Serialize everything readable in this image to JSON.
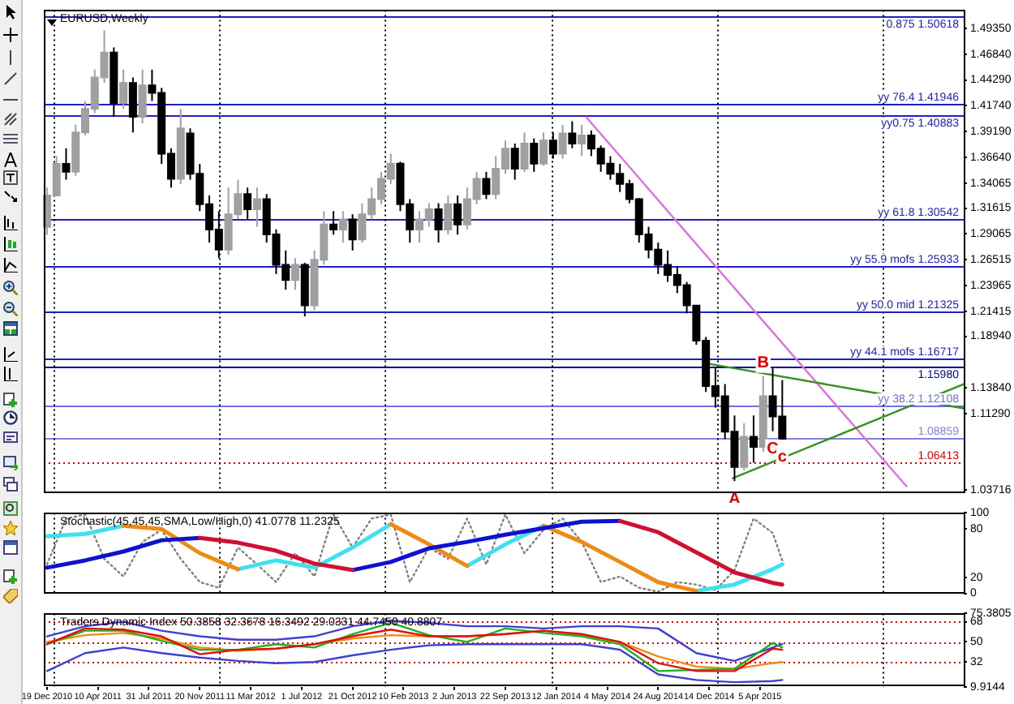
{
  "chart_data": [
    {
      "type": "candlestick",
      "title": "EURUSD,Weekly",
      "xlim": [
        "2010-12-12",
        "2016-06-26"
      ],
      "ylim": [
        1.0345,
        1.512
      ],
      "tick_labels": "y",
      "yticks": [
        {
          "value": 1.4935,
          "label": "1.49350"
        },
        {
          "value": 1.4684,
          "label": "1.46840"
        },
        {
          "value": 1.4429,
          "label": "1.44290"
        },
        {
          "value": 1.4174,
          "label": "1.41740"
        },
        {
          "value": 1.3919,
          "label": "1.39190"
        },
        {
          "value": 1.3664,
          "label": "1.36640"
        },
        {
          "value": 1.34065,
          "label": "1.34065"
        },
        {
          "value": 1.31615,
          "label": "1.31615"
        },
        {
          "value": 1.29065,
          "label": "1.29065"
        },
        {
          "value": 1.26515,
          "label": "1.26515"
        },
        {
          "value": 1.23965,
          "label": "1.23965"
        },
        {
          "value": 1.21415,
          "label": "1.21415"
        },
        {
          "value": 1.1894,
          "label": "1.18940"
        },
        {
          "value": 1.1384,
          "label": "1.13840"
        },
        {
          "value": 1.1129,
          "label": "1.11290"
        },
        {
          "value": 1.03716,
          "label": "1.03716"
        }
      ],
      "ref_lines": [
        {
          "axis": "y",
          "value": 1.50618,
          "label": "0.875 1.50618",
          "color": "#2020c0"
        },
        {
          "axis": "y",
          "value": 1.41946,
          "label": "yy 76.4 1.41946",
          "color": "#2020c0"
        },
        {
          "axis": "y",
          "value": 1.40883,
          "label": "yy0.75 1.40883",
          "color": "#2020c0"
        },
        {
          "axis": "y",
          "value": 1.30542,
          "label": "yy 61.8 1.30542",
          "color": "#2020c0"
        },
        {
          "axis": "y",
          "value": 1.25933,
          "label": "yy 55.9 mofs 1.25933",
          "color": "#2020c0"
        },
        {
          "axis": "y",
          "value": 1.21325,
          "label": "yy 50.0 mid 1.21325",
          "color": "#2020c0"
        },
        {
          "axis": "y",
          "value": 1.16717,
          "label": "yy 44.1 mofs 1.16717",
          "color": "#2020c0"
        },
        {
          "axis": "y",
          "value": 1.1598,
          "label": "1.15980",
          "color": "#000090"
        },
        {
          "axis": "y",
          "value": 1.12108,
          "label": "yy 38.2 1.12108",
          "color": "#7070e0"
        },
        {
          "axis": "y",
          "value": 1.08859,
          "label": "1.08859",
          "color": "#8080e0"
        },
        {
          "axis": "y",
          "value": 1.06413,
          "label": "1.06413",
          "color": "#e00000",
          "line_style": "dotted"
        },
        {
          "axis": "x",
          "value": "2011-01-01",
          "color": "#000000",
          "line_style": "dotted"
        },
        {
          "axis": "x",
          "value": "2012-01-01",
          "color": "#000000",
          "line_style": "dotted"
        },
        {
          "axis": "x",
          "value": "2013-01-01",
          "color": "#000000",
          "line_style": "dotted"
        },
        {
          "axis": "x",
          "value": "2014-01-01",
          "color": "#000000",
          "line_style": "dotted"
        },
        {
          "axis": "x",
          "value": "2015-01-01",
          "color": "#000000",
          "line_style": "dotted"
        },
        {
          "axis": "x",
          "value": "2016-01-01",
          "color": "#000000",
          "line_style": "dotted"
        }
      ],
      "annotations": [
        {
          "text": "A",
          "x": "2015-02-08",
          "y": 1.046
        },
        {
          "text": "B",
          "x": "2015-04-12",
          "y": 1.15
        },
        {
          "text": "C",
          "x": "2015-05-03",
          "y": 1.0954
        },
        {
          "text": "c",
          "x": "2015-05-24",
          "y": 1.0876
        }
      ],
      "series": [
        {
          "colors": [
            "#a0a0a0",
            "#a0a0a0",
            "#000000",
            "#a0a0a0",
            "#a0a0a0",
            "#a0a0a0",
            "#a0a0a0",
            "#000000",
            "#a0a0a0",
            "#000000",
            "#a0a0a0",
            "#000000",
            "#000000",
            "#000000",
            "#a0a0a0",
            "#000000",
            "#000000",
            "#000000",
            "#000000",
            "#a0a0a0",
            "#a0a0a0",
            "#000000",
            "#a0a0a0",
            "#000000",
            "#000000",
            "#000000",
            "#a0a0a0",
            "#000000",
            "#a0a0a0",
            "#a0a0a0",
            "#000000",
            "#a0a0a0",
            "#000000",
            "#a0a0a0",
            "#a0a0a0",
            "#a0a0a0",
            "#a0a0a0",
            "#000000",
            "#000000",
            "#a0a0a0",
            "#a0a0a0",
            "#000000",
            "#a0a0a0",
            "#000000",
            "#a0a0a0",
            "#a0a0a0",
            "#000000",
            "#a0a0a0",
            "#a0a0a0",
            "#000000",
            "#a0a0a0",
            "#000000",
            "#a0a0a0",
            "#000000",
            "#a0a0a0",
            "#000000",
            "#a0a0a0",
            "#000000",
            "#000000",
            "#000000",
            "#000000",
            "#000000",
            "#000000",
            "#000000",
            "#000000",
            "#000000",
            "#000000",
            "#000000",
            "#000000",
            "#000000",
            "#000000",
            "#000000",
            "#000000",
            "#a0a0a0",
            "#000000",
            "#a0a0a0",
            "#000000",
            "#000000"
          ],
          "x": [
            "2010-12-19",
            "2011-01-09",
            "2011-01-30",
            "2011-02-20",
            "2011-03-13",
            "2011-04-03",
            "2011-04-24",
            "2011-05-15",
            "2011-06-05",
            "2011-06-26",
            "2011-07-17",
            "2011-08-07",
            "2011-08-28",
            "2011-09-18",
            "2011-10-09",
            "2011-10-30",
            "2011-11-20",
            "2011-12-11",
            "2012-01-01",
            "2012-01-22",
            "2012-02-12",
            "2012-03-04",
            "2012-03-25",
            "2012-04-15",
            "2012-05-06",
            "2012-05-27",
            "2012-06-17",
            "2012-07-08",
            "2012-07-29",
            "2012-08-19",
            "2012-09-09",
            "2012-09-30",
            "2012-10-21",
            "2012-11-11",
            "2012-12-02",
            "2012-12-23",
            "2013-01-13",
            "2013-02-03",
            "2013-02-24",
            "2013-03-17",
            "2013-04-07",
            "2013-04-28",
            "2013-05-19",
            "2013-06-09",
            "2013-06-30",
            "2013-07-21",
            "2013-08-11",
            "2013-09-01",
            "2013-09-22",
            "2013-10-13",
            "2013-11-03",
            "2013-11-24",
            "2013-12-15",
            "2014-01-05",
            "2014-01-26",
            "2014-02-16",
            "2014-03-09",
            "2014-03-30",
            "2014-04-20",
            "2014-05-11",
            "2014-06-01",
            "2014-06-22",
            "2014-07-13",
            "2014-08-03",
            "2014-08-24",
            "2014-09-14",
            "2014-10-05",
            "2014-10-26",
            "2014-11-16",
            "2014-12-07",
            "2014-12-28",
            "2015-01-18",
            "2015-02-08",
            "2015-03-01",
            "2015-03-22",
            "2015-04-12",
            "2015-05-03",
            "2015-05-24"
          ],
          "ohlc": [
            [
              1.2976,
              1.3364,
              1.2898,
              1.3287
            ],
            [
              1.3287,
              1.3675,
              1.3287,
              1.3598
            ],
            [
              1.3598,
              1.3753,
              1.3442,
              1.352
            ],
            [
              1.352,
              1.3986,
              1.348,
              1.3909
            ],
            [
              1.3909,
              1.422,
              1.388,
              1.4142
            ],
            [
              1.4142,
              1.4531,
              1.41,
              1.4453
            ],
            [
              1.4453,
              1.4919,
              1.44,
              1.47
            ],
            [
              1.47,
              1.475,
              1.4064,
              1.42
            ],
            [
              1.42,
              1.4531,
              1.4142,
              1.44
            ],
            [
              1.44,
              1.4453,
              1.3909,
              1.4064
            ],
            [
              1.4064,
              1.4531,
              1.4,
              1.4375
            ],
            [
              1.4375,
              1.4531,
              1.422,
              1.43
            ],
            [
              1.43,
              1.435,
              1.3598,
              1.37
            ],
            [
              1.37,
              1.3753,
              1.3364,
              1.345
            ],
            [
              1.345,
              1.4142,
              1.34,
              1.395
            ],
            [
              1.39,
              1.395,
              1.3442,
              1.35
            ],
            [
              1.35,
              1.3598,
              1.3131,
              1.32
            ],
            [
              1.32,
              1.3287,
              1.282,
              1.295
            ],
            [
              1.295,
              1.3131,
              1.2665,
              1.275
            ],
            [
              1.275,
              1.3364,
              1.27,
              1.31
            ],
            [
              1.31,
              1.3442,
              1.3053,
              1.33
            ],
            [
              1.33,
              1.3364,
              1.3053,
              1.315
            ],
            [
              1.315,
              1.3364,
              1.2976,
              1.325
            ],
            [
              1.325,
              1.33,
              1.282,
              1.29
            ],
            [
              1.29,
              1.295,
              1.2509,
              1.26
            ],
            [
              1.26,
              1.2742,
              1.2354,
              1.245
            ],
            [
              1.245,
              1.2665,
              1.2354,
              1.26
            ],
            [
              1.26,
              1.262,
              1.209,
              1.22
            ],
            [
              1.22,
              1.2742,
              1.215,
              1.265
            ],
            [
              1.265,
              1.3131,
              1.26,
              1.3
            ],
            [
              1.3,
              1.3131,
              1.2898,
              1.295
            ],
            [
              1.295,
              1.3131,
              1.282,
              1.305
            ],
            [
              1.305,
              1.31,
              1.2742,
              1.285
            ],
            [
              1.285,
              1.3209,
              1.282,
              1.31
            ],
            [
              1.31,
              1.3364,
              1.305,
              1.325
            ],
            [
              1.325,
              1.352,
              1.32,
              1.345
            ],
            [
              1.345,
              1.37,
              1.34,
              1.36
            ],
            [
              1.36,
              1.362,
              1.3131,
              1.32
            ],
            [
              1.32,
              1.325,
              1.282,
              1.295
            ],
            [
              1.295,
              1.3131,
              1.282,
              1.305
            ],
            [
              1.305,
              1.3209,
              1.2976,
              1.315
            ],
            [
              1.315,
              1.3209,
              1.282,
              1.295
            ],
            [
              1.295,
              1.3287,
              1.29,
              1.32
            ],
            [
              1.32,
              1.3287,
              1.2898,
              1.3
            ],
            [
              1.3,
              1.3364,
              1.295,
              1.325
            ],
            [
              1.325,
              1.352,
              1.32,
              1.345
            ],
            [
              1.345,
              1.352,
              1.325,
              1.33
            ],
            [
              1.33,
              1.3675,
              1.325,
              1.355
            ],
            [
              1.355,
              1.3831,
              1.35,
              1.375
            ],
            [
              1.375,
              1.38,
              1.3442,
              1.355
            ],
            [
              1.355,
              1.3909,
              1.352,
              1.38
            ],
            [
              1.38,
              1.385,
              1.352,
              1.36
            ],
            [
              1.36,
              1.3909,
              1.358,
              1.383
            ],
            [
              1.383,
              1.3909,
              1.365,
              1.37
            ],
            [
              1.37,
              1.3986,
              1.365,
              1.39
            ],
            [
              1.39,
              1.402,
              1.3753,
              1.38
            ],
            [
              1.38,
              1.3986,
              1.3675,
              1.388
            ],
            [
              1.388,
              1.393,
              1.3675,
              1.375
            ],
            [
              1.375,
              1.378,
              1.352,
              1.36
            ],
            [
              1.36,
              1.3675,
              1.3442,
              1.35
            ],
            [
              1.35,
              1.3598,
              1.332,
              1.34
            ],
            [
              1.34,
              1.3442,
              1.3209,
              1.325
            ],
            [
              1.325,
              1.326,
              1.282,
              1.29
            ],
            [
              1.29,
              1.2976,
              1.2665,
              1.275
            ],
            [
              1.275,
              1.282,
              1.2509,
              1.26
            ],
            [
              1.26,
              1.2742,
              1.2431,
              1.25
            ],
            [
              1.25,
              1.2587,
              1.232,
              1.24
            ],
            [
              1.24,
              1.2431,
              1.212,
              1.22
            ],
            [
              1.2198,
              1.2198,
              1.1809,
              1.185
            ],
            [
              1.185,
              1.1887,
              1.1343,
              1.14
            ],
            [
              1.14,
              1.1576,
              1.1187,
              1.13
            ],
            [
              1.13,
              1.1421,
              1.0876,
              1.095
            ],
            [
              1.095,
              1.111,
              1.046,
              1.06
            ],
            [
              1.06,
              1.1032,
              1.0566,
              1.09
            ],
            [
              1.09,
              1.111,
              1.0643,
              1.08
            ],
            [
              1.08,
              1.15,
              1.075,
              1.13
            ],
            [
              1.13,
              1.1576,
              1.0954,
              1.11
            ],
            [
              1.11,
              1.146,
              1.0876,
              1.088
            ]
          ]
        },
        {
          "type": "line",
          "color": "#e070e0",
          "x": [
            "2014-03-19",
            "2016-02-21"
          ],
          "values": [
            1.406,
            1.041
          ]
        },
        {
          "type": "line",
          "color": "#3a8f20",
          "x": [
            "2014-12-14",
            "2016-06-26"
          ],
          "values": [
            1.162,
            1.118
          ]
        },
        {
          "type": "line",
          "color": "#3a8f20",
          "x": [
            "2015-02-04",
            "2016-06-26"
          ],
          "values": [
            1.049,
            1.142
          ]
        }
      ]
    },
    {
      "type": "line",
      "title": "Stochastic(45,45,45,SMA,Low/High,0) 41.0778 11.2325",
      "xlim": [
        "2010-12-12",
        "2016-06-26"
      ],
      "ylim": [
        0,
        100
      ],
      "yticks": [
        0,
        20,
        80,
        100
      ],
      "tick_labels": "y",
      "ref_lines": [
        {
          "axis": "x",
          "value": "2011-01-01",
          "color": "#000000",
          "line_style": "dotted"
        },
        {
          "axis": "x",
          "value": "2012-01-01",
          "color": "#000000",
          "line_style": "dotted"
        },
        {
          "axis": "x",
          "value": "2013-01-01",
          "color": "#000000",
          "line_style": "dotted"
        },
        {
          "axis": "x",
          "value": "2014-01-01",
          "color": "#000000",
          "line_style": "dotted"
        },
        {
          "axis": "x",
          "value": "2015-01-01",
          "color": "#000000",
          "line_style": "dotted"
        },
        {
          "axis": "x",
          "value": "2016-01-01",
          "color": "#000000",
          "line_style": "dotted"
        }
      ],
      "x": [
        "2010-12-19",
        "2011-03-13",
        "2011-06-05",
        "2011-08-28",
        "2011-11-20",
        "2012-02-12",
        "2012-05-06",
        "2012-07-29",
        "2012-10-21",
        "2013-01-13",
        "2013-04-07",
        "2013-06-30",
        "2013-09-22",
        "2013-12-15",
        "2014-03-09",
        "2014-06-01",
        "2014-08-24",
        "2014-11-16",
        "2015-02-08",
        "2015-05-03",
        "2015-05-24"
      ],
      "series": [
        {
          "color": "#808080",
          "line_style": "dotted",
          "x": [
            "2010-12-19",
            "2011-01-30",
            "2011-03-13",
            "2011-04-24",
            "2011-06-05",
            "2011-07-17",
            "2011-08-28",
            "2011-10-09",
            "2011-11-20",
            "2012-01-01",
            "2012-02-12",
            "2012-03-25",
            "2012-05-06",
            "2012-06-17",
            "2012-07-29",
            "2012-09-09",
            "2012-10-21",
            "2012-12-02",
            "2013-01-13",
            "2013-02-24",
            "2013-04-07",
            "2013-05-19",
            "2013-06-30",
            "2013-08-11",
            "2013-09-22",
            "2013-11-03",
            "2013-12-15",
            "2014-01-26",
            "2014-03-09",
            "2014-04-20",
            "2014-06-01",
            "2014-07-13",
            "2014-08-24",
            "2014-10-05",
            "2014-11-16",
            "2014-12-28",
            "2015-02-08",
            "2015-03-22",
            "2015-05-03",
            "2015-05-24"
          ],
          "values": [
            36,
            93,
            98,
            43,
            21,
            64,
            79,
            43,
            14,
            7,
            57,
            36,
            14,
            50,
            21,
            98,
            57,
            93,
            98,
            14,
            57,
            43,
            93,
            36,
            98,
            50,
            79,
            93,
            64,
            14,
            21,
            7,
            2,
            14,
            11,
            4,
            29,
            93,
            75,
            41
          ]
        },
        {
          "color": "#40e0f0",
          "values": [
            71,
            74,
            84,
            null,
            null,
            30,
            41,
            32,
            57,
            86,
            null,
            34,
            61,
            84,
            null,
            null,
            null,
            3,
            11,
            30,
            36
          ]
        },
        {
          "color": "#f08a10",
          "values": [
            null,
            null,
            84,
            80,
            50,
            30,
            null,
            null,
            null,
            86,
            61,
            34,
            null,
            84,
            64,
            39,
            14,
            3,
            null,
            null,
            null
          ]
        },
        {
          "color": "#1010d0",
          "values": [
            32,
            41,
            52,
            66,
            69,
            null,
            null,
            null,
            29,
            39,
            56,
            64,
            73,
            81,
            89,
            90,
            null,
            null,
            null,
            null,
            null
          ]
        },
        {
          "color": "#d01030",
          "values": [
            null,
            null,
            null,
            null,
            69,
            63,
            53,
            37,
            29,
            null,
            null,
            null,
            null,
            null,
            null,
            90,
            76,
            51,
            26,
            13,
            11
          ]
        }
      ]
    },
    {
      "type": "line",
      "title": "Traders Dynamic Index 50.3858 32.3678 16.3492 29.0331 44.7450 40.8807",
      "xlim": [
        "2010-12-12",
        "2016-06-26"
      ],
      "ylim": [
        9.9144,
        75.3805
      ],
      "yticks": [
        {
          "value": 9.9144,
          "label": "9.9144"
        },
        32,
        50,
        68,
        {
          "value": 75.3805,
          "label": "75.3805"
        }
      ],
      "xticks": [
        {
          "value": "2010-12-19",
          "label": "19 Dec 2010"
        },
        {
          "value": "2011-04-10",
          "label": "10 Apr 2011"
        },
        {
          "value": "2011-07-31",
          "label": "31 Jul 2011"
        },
        {
          "value": "2011-11-20",
          "label": "20 Nov 2011"
        },
        {
          "value": "2012-03-11",
          "label": "11 Mar 2012"
        },
        {
          "value": "2012-07-01",
          "label": "1 Jul 2012"
        },
        {
          "value": "2012-10-21",
          "label": "21 Oct 2012"
        },
        {
          "value": "2013-02-10",
          "label": "10 Feb 2013"
        },
        {
          "value": "2013-06-02",
          "label": "2 Jun 2013"
        },
        {
          "value": "2013-09-22",
          "label": "22 Sep 2013"
        },
        {
          "value": "2014-01-12",
          "label": "12 Jan 2014"
        },
        {
          "value": "2014-05-04",
          "label": "4 May 2014"
        },
        {
          "value": "2014-08-24",
          "label": "24 Aug 2014"
        },
        {
          "value": "2014-12-14",
          "label": "14 Dec 2014"
        },
        {
          "value": "2015-04-05",
          "label": "5 Apr 2015"
        }
      ],
      "ref_lines": [
        {
          "axis": "y",
          "value": 68,
          "color": "#e00000",
          "line_style": "dotted"
        },
        {
          "axis": "y",
          "value": 50,
          "color": "#e00000",
          "line_style": "dotted"
        },
        {
          "axis": "y",
          "value": 32,
          "color": "#e00000",
          "line_style": "dotted"
        },
        {
          "axis": "x",
          "value": "2011-01-01",
          "color": "#000000",
          "line_style": "dotted"
        },
        {
          "axis": "x",
          "value": "2012-01-01",
          "color": "#000000",
          "line_style": "dotted"
        },
        {
          "axis": "x",
          "value": "2013-01-01",
          "color": "#000000",
          "line_style": "dotted"
        },
        {
          "axis": "x",
          "value": "2014-01-01",
          "color": "#000000",
          "line_style": "dotted"
        },
        {
          "axis": "x",
          "value": "2015-01-01",
          "color": "#000000",
          "line_style": "dotted"
        },
        {
          "axis": "x",
          "value": "2016-01-01",
          "color": "#000000",
          "line_style": "dotted"
        }
      ],
      "x": [
        "2010-12-19",
        "2011-03-13",
        "2011-06-05",
        "2011-08-28",
        "2011-11-20",
        "2012-02-12",
        "2012-05-06",
        "2012-07-29",
        "2012-10-21",
        "2013-01-13",
        "2013-04-07",
        "2013-06-30",
        "2013-09-22",
        "2013-12-15",
        "2014-03-09",
        "2014-06-01",
        "2014-08-24",
        "2014-11-16",
        "2015-02-08",
        "2015-05-03",
        "2015-05-24"
      ],
      "series": [
        {
          "color": "#4040d0",
          "values": [
            55,
            64,
            68,
            60,
            55,
            52,
            52,
            55,
            64,
            69,
            67,
            64,
            64,
            62,
            64,
            64,
            62,
            40,
            33,
            45,
            48
          ]
        },
        {
          "color": "#4040d0",
          "values": [
            24,
            40,
            45,
            40,
            36,
            33,
            31,
            32,
            38,
            43,
            47,
            48,
            48,
            48,
            48,
            43,
            21,
            16,
            14,
            15,
            16
          ]
        },
        {
          "color": "#f08a10",
          "values": [
            50,
            56,
            58,
            53,
            45,
            42,
            44,
            48,
            53,
            56,
            55,
            55,
            57,
            60,
            56,
            50,
            37,
            28,
            26,
            31,
            32
          ]
        },
        {
          "color": "#20b020",
          "values": [
            48,
            60,
            60,
            51,
            43,
            43,
            48,
            45,
            57,
            67,
            56,
            50,
            62,
            58,
            55,
            48,
            24,
            25,
            26,
            49,
            45
          ]
        },
        {
          "color": "#e01010",
          "values": [
            48,
            62,
            61,
            55,
            39,
            43,
            44,
            48,
            55,
            61,
            55,
            55,
            57,
            60,
            57,
            50,
            31,
            24,
            24,
            44,
            43
          ]
        }
      ]
    }
  ]
}
